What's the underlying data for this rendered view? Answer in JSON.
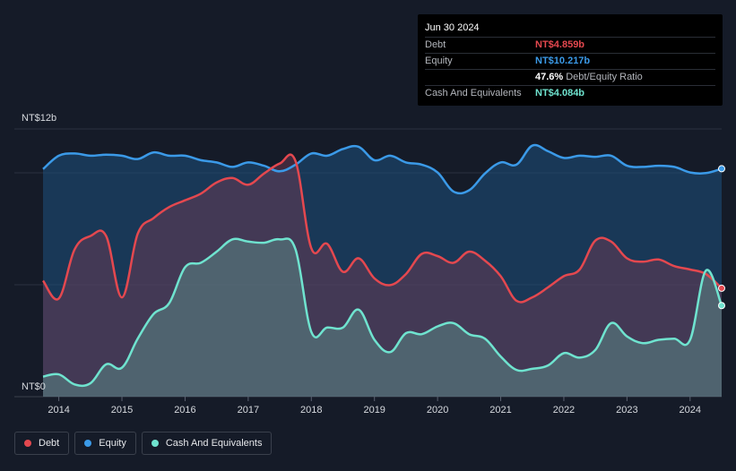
{
  "tooltip": {
    "date": "Jun 30 2024",
    "rows": [
      {
        "label": "Debt",
        "value": "NT$4.859b",
        "color": "#e4484f"
      },
      {
        "label": "Equity",
        "value": "NT$10.217b",
        "color": "#3b9ae8"
      },
      {
        "label": "",
        "value": "47.6%",
        "suffix": "Debt/Equity Ratio",
        "color": "#ffffff"
      },
      {
        "label": "Cash And Equivalents",
        "value": "NT$4.084b",
        "color": "#6fe3cf"
      }
    ]
  },
  "legend": [
    {
      "label": "Debt",
      "color": "#e4484f"
    },
    {
      "label": "Equity",
      "color": "#3b9ae8"
    },
    {
      "label": "Cash And Equivalents",
      "color": "#6fe3cf"
    }
  ],
  "chart_data": {
    "type": "area",
    "ylabel_top": "NT$12b",
    "ylabel_bottom": "NT$0",
    "ylim": [
      0,
      12
    ],
    "xlim": [
      2013.75,
      2024.5
    ],
    "x_ticks": [
      "2014",
      "2015",
      "2016",
      "2017",
      "2018",
      "2019",
      "2020",
      "2021",
      "2022",
      "2023",
      "2024"
    ],
    "series": [
      {
        "name": "Equity",
        "color": "#3b9ae8",
        "points": [
          [
            2013.75,
            10.2
          ],
          [
            2014.0,
            10.8
          ],
          [
            2014.25,
            10.9
          ],
          [
            2014.5,
            10.8
          ],
          [
            2014.75,
            10.85
          ],
          [
            2015.0,
            10.8
          ],
          [
            2015.25,
            10.65
          ],
          [
            2015.5,
            10.95
          ],
          [
            2015.75,
            10.8
          ],
          [
            2016.0,
            10.8
          ],
          [
            2016.25,
            10.6
          ],
          [
            2016.5,
            10.5
          ],
          [
            2016.75,
            10.3
          ],
          [
            2017.0,
            10.5
          ],
          [
            2017.25,
            10.35
          ],
          [
            2017.5,
            10.1
          ],
          [
            2017.75,
            10.4
          ],
          [
            2018.0,
            10.9
          ],
          [
            2018.25,
            10.8
          ],
          [
            2018.5,
            11.1
          ],
          [
            2018.75,
            11.2
          ],
          [
            2019.0,
            10.6
          ],
          [
            2019.25,
            10.8
          ],
          [
            2019.5,
            10.5
          ],
          [
            2019.75,
            10.4
          ],
          [
            2020.0,
            10.05
          ],
          [
            2020.25,
            9.2
          ],
          [
            2020.5,
            9.25
          ],
          [
            2020.75,
            10.0
          ],
          [
            2021.0,
            10.5
          ],
          [
            2021.25,
            10.4
          ],
          [
            2021.5,
            11.25
          ],
          [
            2021.75,
            11.0
          ],
          [
            2022.0,
            10.7
          ],
          [
            2022.25,
            10.8
          ],
          [
            2022.5,
            10.75
          ],
          [
            2022.75,
            10.8
          ],
          [
            2023.0,
            10.35
          ],
          [
            2023.25,
            10.3
          ],
          [
            2023.5,
            10.35
          ],
          [
            2023.75,
            10.3
          ],
          [
            2024.0,
            10.05
          ],
          [
            2024.25,
            10.02
          ],
          [
            2024.5,
            10.217
          ]
        ]
      },
      {
        "name": "Debt",
        "color": "#e4484f",
        "points": [
          [
            2013.75,
            5.2
          ],
          [
            2014.0,
            4.4
          ],
          [
            2014.25,
            6.6
          ],
          [
            2014.5,
            7.2
          ],
          [
            2014.75,
            7.2
          ],
          [
            2015.0,
            4.45
          ],
          [
            2015.25,
            7.3
          ],
          [
            2015.5,
            8.0
          ],
          [
            2015.75,
            8.5
          ],
          [
            2016.0,
            8.8
          ],
          [
            2016.25,
            9.1
          ],
          [
            2016.5,
            9.6
          ],
          [
            2016.75,
            9.8
          ],
          [
            2017.0,
            9.5
          ],
          [
            2017.25,
            10.0
          ],
          [
            2017.5,
            10.45
          ],
          [
            2017.75,
            10.55
          ],
          [
            2018.0,
            6.65
          ],
          [
            2018.25,
            6.85
          ],
          [
            2018.5,
            5.6
          ],
          [
            2018.75,
            6.2
          ],
          [
            2019.0,
            5.3
          ],
          [
            2019.25,
            5.0
          ],
          [
            2019.5,
            5.5
          ],
          [
            2019.75,
            6.4
          ],
          [
            2020.0,
            6.3
          ],
          [
            2020.25,
            6.0
          ],
          [
            2020.5,
            6.5
          ],
          [
            2020.75,
            6.1
          ],
          [
            2021.0,
            5.4
          ],
          [
            2021.25,
            4.3
          ],
          [
            2021.5,
            4.45
          ],
          [
            2021.75,
            4.9
          ],
          [
            2022.0,
            5.4
          ],
          [
            2022.25,
            5.7
          ],
          [
            2022.5,
            7.0
          ],
          [
            2022.75,
            6.95
          ],
          [
            2023.0,
            6.2
          ],
          [
            2023.25,
            6.05
          ],
          [
            2023.5,
            6.15
          ],
          [
            2023.75,
            5.85
          ],
          [
            2024.0,
            5.7
          ],
          [
            2024.25,
            5.5
          ],
          [
            2024.5,
            4.859
          ]
        ]
      },
      {
        "name": "Cash And Equivalents",
        "color": "#6fe3cf",
        "points": [
          [
            2013.75,
            0.9
          ],
          [
            2014.0,
            1.0
          ],
          [
            2014.25,
            0.55
          ],
          [
            2014.5,
            0.6
          ],
          [
            2014.75,
            1.45
          ],
          [
            2015.0,
            1.3
          ],
          [
            2015.25,
            2.6
          ],
          [
            2015.5,
            3.7
          ],
          [
            2015.75,
            4.2
          ],
          [
            2016.0,
            5.8
          ],
          [
            2016.25,
            6.0
          ],
          [
            2016.5,
            6.5
          ],
          [
            2016.75,
            7.05
          ],
          [
            2017.0,
            6.95
          ],
          [
            2017.25,
            6.9
          ],
          [
            2017.5,
            7.05
          ],
          [
            2017.75,
            6.6
          ],
          [
            2018.0,
            2.9
          ],
          [
            2018.25,
            3.1
          ],
          [
            2018.5,
            3.1
          ],
          [
            2018.75,
            3.9
          ],
          [
            2019.0,
            2.55
          ],
          [
            2019.25,
            2.0
          ],
          [
            2019.5,
            2.85
          ],
          [
            2019.75,
            2.8
          ],
          [
            2020.0,
            3.15
          ],
          [
            2020.25,
            3.3
          ],
          [
            2020.5,
            2.8
          ],
          [
            2020.75,
            2.6
          ],
          [
            2021.0,
            1.8
          ],
          [
            2021.25,
            1.2
          ],
          [
            2021.5,
            1.25
          ],
          [
            2021.75,
            1.4
          ],
          [
            2022.0,
            1.95
          ],
          [
            2022.25,
            1.75
          ],
          [
            2022.5,
            2.1
          ],
          [
            2022.75,
            3.3
          ],
          [
            2023.0,
            2.7
          ],
          [
            2023.25,
            2.4
          ],
          [
            2023.5,
            2.55
          ],
          [
            2023.75,
            2.6
          ],
          [
            2024.0,
            2.55
          ],
          [
            2024.25,
            5.65
          ],
          [
            2024.5,
            4.084
          ]
        ]
      }
    ]
  }
}
